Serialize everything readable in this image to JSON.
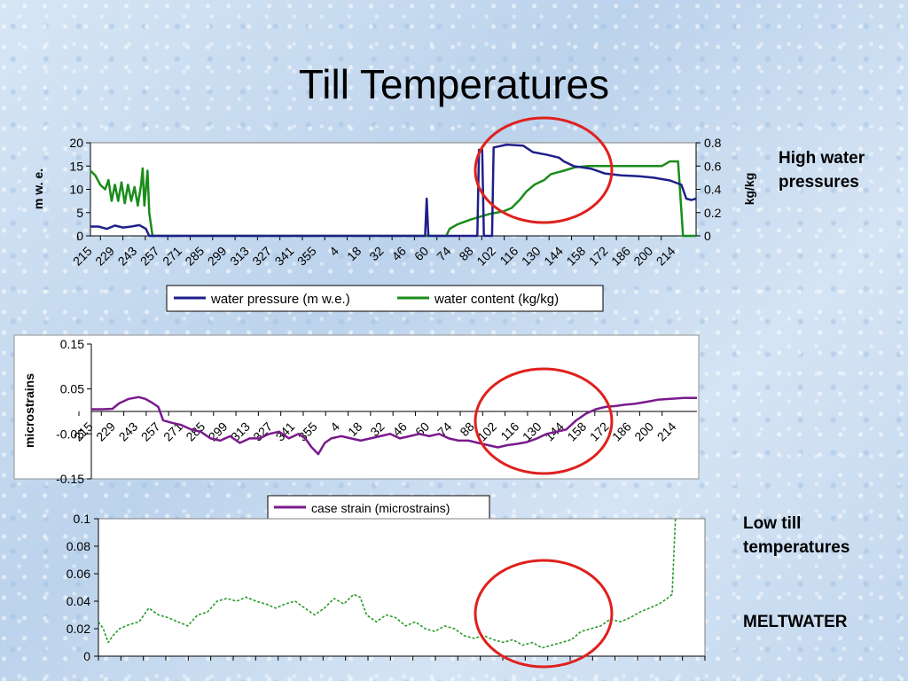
{
  "slide": {
    "title": "Till Temperatures",
    "note_high": "High water pressures",
    "note_low": "Low till temperatures",
    "note_meltwater": "MELTWATER"
  },
  "colors": {
    "pressure": "#1f1f8c",
    "content": "#1a8c1a",
    "strain": "#7a1a8c",
    "temp": "#2a9a2a",
    "circle": "#e0201c"
  },
  "chart_data": [
    {
      "type": "line",
      "x_ticks": [
        "215",
        "229",
        "243",
        "257",
        "271",
        "285",
        "299",
        "313",
        "327",
        "341",
        "355",
        "4",
        "18",
        "32",
        "46",
        "60",
        "74",
        "88",
        "102",
        "116",
        "130",
        "144",
        "158",
        "172",
        "186",
        "200",
        "214"
      ],
      "ylabel": "m w. e.",
      "y2label": "kg/kg",
      "ylim": [
        0,
        20
      ],
      "y_ticks": [
        "20",
        "15",
        "10",
        "5",
        "0"
      ],
      "y2lim": [
        0,
        0.8
      ],
      "y2_ticks": [
        "0.8",
        "0.6",
        "0.4",
        "0.2",
        "0"
      ],
      "legend_position": "bottom",
      "series": [
        {
          "name": "water pressure (m w.e.)",
          "axis": "left",
          "points": [
            [
              215,
              2
            ],
            [
              220,
              2
            ],
            [
              225,
              1.5
            ],
            [
              230,
              2.2
            ],
            [
              235,
              1.8
            ],
            [
              240,
              2
            ],
            [
              245,
              2.3
            ],
            [
              249,
              1.5
            ],
            [
              251,
              0
            ],
            [
              420,
              0
            ],
            [
              421,
              8
            ],
            [
              422,
              0
            ],
            [
              452,
              0
            ],
            [
              453,
              18.5
            ],
            [
              455,
              18.5
            ],
            [
              456,
              0
            ],
            [
              461,
              0
            ],
            [
              462,
              19
            ],
            [
              470,
              19.6
            ],
            [
              480,
              19.4
            ],
            [
              486,
              18
            ],
            [
              495,
              17.4
            ],
            [
              502,
              16.8
            ],
            [
              505,
              16
            ],
            [
              511,
              15
            ],
            [
              522,
              14.4
            ],
            [
              530,
              13.4
            ],
            [
              540,
              13
            ],
            [
              551,
              12.8
            ],
            [
              560,
              12.5
            ],
            [
              570,
              11.9
            ],
            [
              577,
              11
            ],
            [
              580,
              8
            ],
            [
              583,
              7.7
            ],
            [
              586,
              8
            ]
          ]
        },
        {
          "name": "water content (kg/kg)",
          "axis": "right",
          "points": [
            [
              215,
              0.56
            ],
            [
              218,
              0.52
            ],
            [
              221,
              0.44
            ],
            [
              224,
              0.4
            ],
            [
              226,
              0.48
            ],
            [
              228,
              0.3
            ],
            [
              230,
              0.44
            ],
            [
              232,
              0.3
            ],
            [
              234,
              0.46
            ],
            [
              236,
              0.28
            ],
            [
              238,
              0.44
            ],
            [
              240,
              0.3
            ],
            [
              242,
              0.42
            ],
            [
              244,
              0.26
            ],
            [
              246,
              0.44
            ],
            [
              247,
              0.58
            ],
            [
              248,
              0.26
            ],
            [
              250,
              0.56
            ],
            [
              251,
              0.2
            ],
            [
              253,
              0
            ],
            [
              405,
              0
            ],
            [
              433,
              0
            ],
            [
              435,
              0.06
            ],
            [
              440,
              0.1
            ],
            [
              448,
              0.14
            ],
            [
              455,
              0.17
            ],
            [
              460,
              0.19
            ],
            [
              468,
              0.21
            ],
            [
              473,
              0.24
            ],
            [
              478,
              0.31
            ],
            [
              482,
              0.38
            ],
            [
              487,
              0.44
            ],
            [
              493,
              0.48
            ],
            [
              497,
              0.53
            ],
            [
              505,
              0.56
            ],
            [
              512,
              0.59
            ],
            [
              520,
              0.6
            ],
            [
              540,
              0.6
            ],
            [
              560,
              0.6
            ],
            [
              565,
              0.6
            ],
            [
              570,
              0.64
            ],
            [
              575,
              0.64
            ],
            [
              578,
              0
            ],
            [
              586,
              0
            ]
          ]
        }
      ]
    },
    {
      "type": "line",
      "x_ticks": [
        "215",
        "229",
        "243",
        "257",
        "271",
        "285",
        "299",
        "313",
        "327",
        "341",
        "355",
        "4",
        "18",
        "32",
        "46",
        "60",
        "74",
        "88",
        "102",
        "116",
        "130",
        "144",
        "158",
        "172",
        "186",
        "200",
        "214"
      ],
      "ylabel": "microstrains",
      "ylim": [
        -0.15,
        0.15
      ],
      "y_ticks": [
        "0.15",
        "0.05",
        "-0.05",
        "-0.15"
      ],
      "legend_position": "bottom",
      "series": [
        {
          "name": "case strain (microstrains)",
          "points": [
            [
              215,
              0.005
            ],
            [
              222,
              0.005
            ],
            [
              228,
              0.006
            ],
            [
              232,
              0.018
            ],
            [
              238,
              0.028
            ],
            [
              244,
              0.032
            ],
            [
              248,
              0.028
            ],
            [
              252,
              0.02
            ],
            [
              256,
              0.01
            ],
            [
              259,
              -0.02
            ],
            [
              264,
              -0.025
            ],
            [
              270,
              -0.03
            ],
            [
              276,
              -0.04
            ],
            [
              282,
              -0.045
            ],
            [
              288,
              -0.06
            ],
            [
              294,
              -0.065
            ],
            [
              300,
              -0.055
            ],
            [
              306,
              -0.07
            ],
            [
              312,
              -0.06
            ],
            [
              318,
              -0.06
            ],
            [
              324,
              -0.05
            ],
            [
              330,
              -0.045
            ],
            [
              336,
              -0.06
            ],
            [
              342,
              -0.05
            ],
            [
              346,
              -0.06
            ],
            [
              350,
              -0.08
            ],
            [
              354,
              -0.095
            ],
            [
              358,
              -0.07
            ],
            [
              362,
              -0.06
            ],
            [
              368,
              -0.055
            ],
            [
              374,
              -0.06
            ],
            [
              380,
              -0.065
            ],
            [
              386,
              -0.06
            ],
            [
              392,
              -0.055
            ],
            [
              398,
              -0.05
            ],
            [
              404,
              -0.06
            ],
            [
              410,
              -0.055
            ],
            [
              416,
              -0.05
            ],
            [
              422,
              -0.055
            ],
            [
              428,
              -0.05
            ],
            [
              434,
              -0.06
            ],
            [
              440,
              -0.065
            ],
            [
              446,
              -0.065
            ],
            [
              452,
              -0.07
            ],
            [
              458,
              -0.075
            ],
            [
              464,
              -0.08
            ],
            [
              470,
              -0.075
            ],
            [
              476,
              -0.072
            ],
            [
              482,
              -0.068
            ],
            [
              488,
              -0.06
            ],
            [
              494,
              -0.05
            ],
            [
              500,
              -0.045
            ],
            [
              506,
              -0.04
            ],
            [
              512,
              -0.02
            ],
            [
              518,
              -0.005
            ],
            [
              524,
              0.005
            ],
            [
              530,
              0.01
            ],
            [
              536,
              0.012
            ],
            [
              542,
              0.015
            ],
            [
              548,
              0.017
            ],
            [
              556,
              0.022
            ],
            [
              562,
              0.026
            ],
            [
              570,
              0.028
            ],
            [
              578,
              0.03
            ],
            [
              586,
              0.03
            ]
          ]
        }
      ]
    },
    {
      "type": "line",
      "ylim": [
        0,
        0.1
      ],
      "y_ticks": [
        "0.1",
        "0.08",
        "0.06",
        "0.04",
        "0.02",
        "0"
      ],
      "series": [
        {
          "points": [
            [
              215,
              0.025
            ],
            [
              218,
              0.02
            ],
            [
              221,
              0.01
            ],
            [
              224,
              0.015
            ],
            [
              228,
              0.02
            ],
            [
              234,
              0.023
            ],
            [
              240,
              0.025
            ],
            [
              246,
              0.035
            ],
            [
              252,
              0.03
            ],
            [
              258,
              0.028
            ],
            [
              264,
              0.025
            ],
            [
              270,
              0.022
            ],
            [
              276,
              0.03
            ],
            [
              282,
              0.032
            ],
            [
              288,
              0.04
            ],
            [
              294,
              0.042
            ],
            [
              300,
              0.04
            ],
            [
              306,
              0.043
            ],
            [
              312,
              0.04
            ],
            [
              318,
              0.038
            ],
            [
              324,
              0.035
            ],
            [
              330,
              0.038
            ],
            [
              336,
              0.04
            ],
            [
              342,
              0.035
            ],
            [
              348,
              0.03
            ],
            [
              354,
              0.035
            ],
            [
              360,
              0.042
            ],
            [
              366,
              0.038
            ],
            [
              372,
              0.045
            ],
            [
              376,
              0.043
            ],
            [
              380,
              0.03
            ],
            [
              386,
              0.025
            ],
            [
              392,
              0.03
            ],
            [
              398,
              0.028
            ],
            [
              404,
              0.022
            ],
            [
              410,
              0.025
            ],
            [
              416,
              0.02
            ],
            [
              422,
              0.018
            ],
            [
              428,
              0.022
            ],
            [
              434,
              0.02
            ],
            [
              440,
              0.015
            ],
            [
              446,
              0.013
            ],
            [
              452,
              0.015
            ],
            [
              458,
              0.012
            ],
            [
              464,
              0.01
            ],
            [
              470,
              0.012
            ],
            [
              476,
              0.008
            ],
            [
              482,
              0.01
            ],
            [
              488,
              0.006
            ],
            [
              494,
              0.008
            ],
            [
              500,
              0.01
            ],
            [
              506,
              0.012
            ],
            [
              512,
              0.018
            ],
            [
              518,
              0.02
            ],
            [
              524,
              0.022
            ],
            [
              530,
              0.027
            ],
            [
              536,
              0.025
            ],
            [
              542,
              0.028
            ],
            [
              548,
              0.032
            ],
            [
              554,
              0.035
            ],
            [
              560,
              0.038
            ],
            [
              565,
              0.042
            ],
            [
              568,
              0.045
            ],
            [
              570,
              0.1
            ]
          ]
        }
      ]
    }
  ]
}
